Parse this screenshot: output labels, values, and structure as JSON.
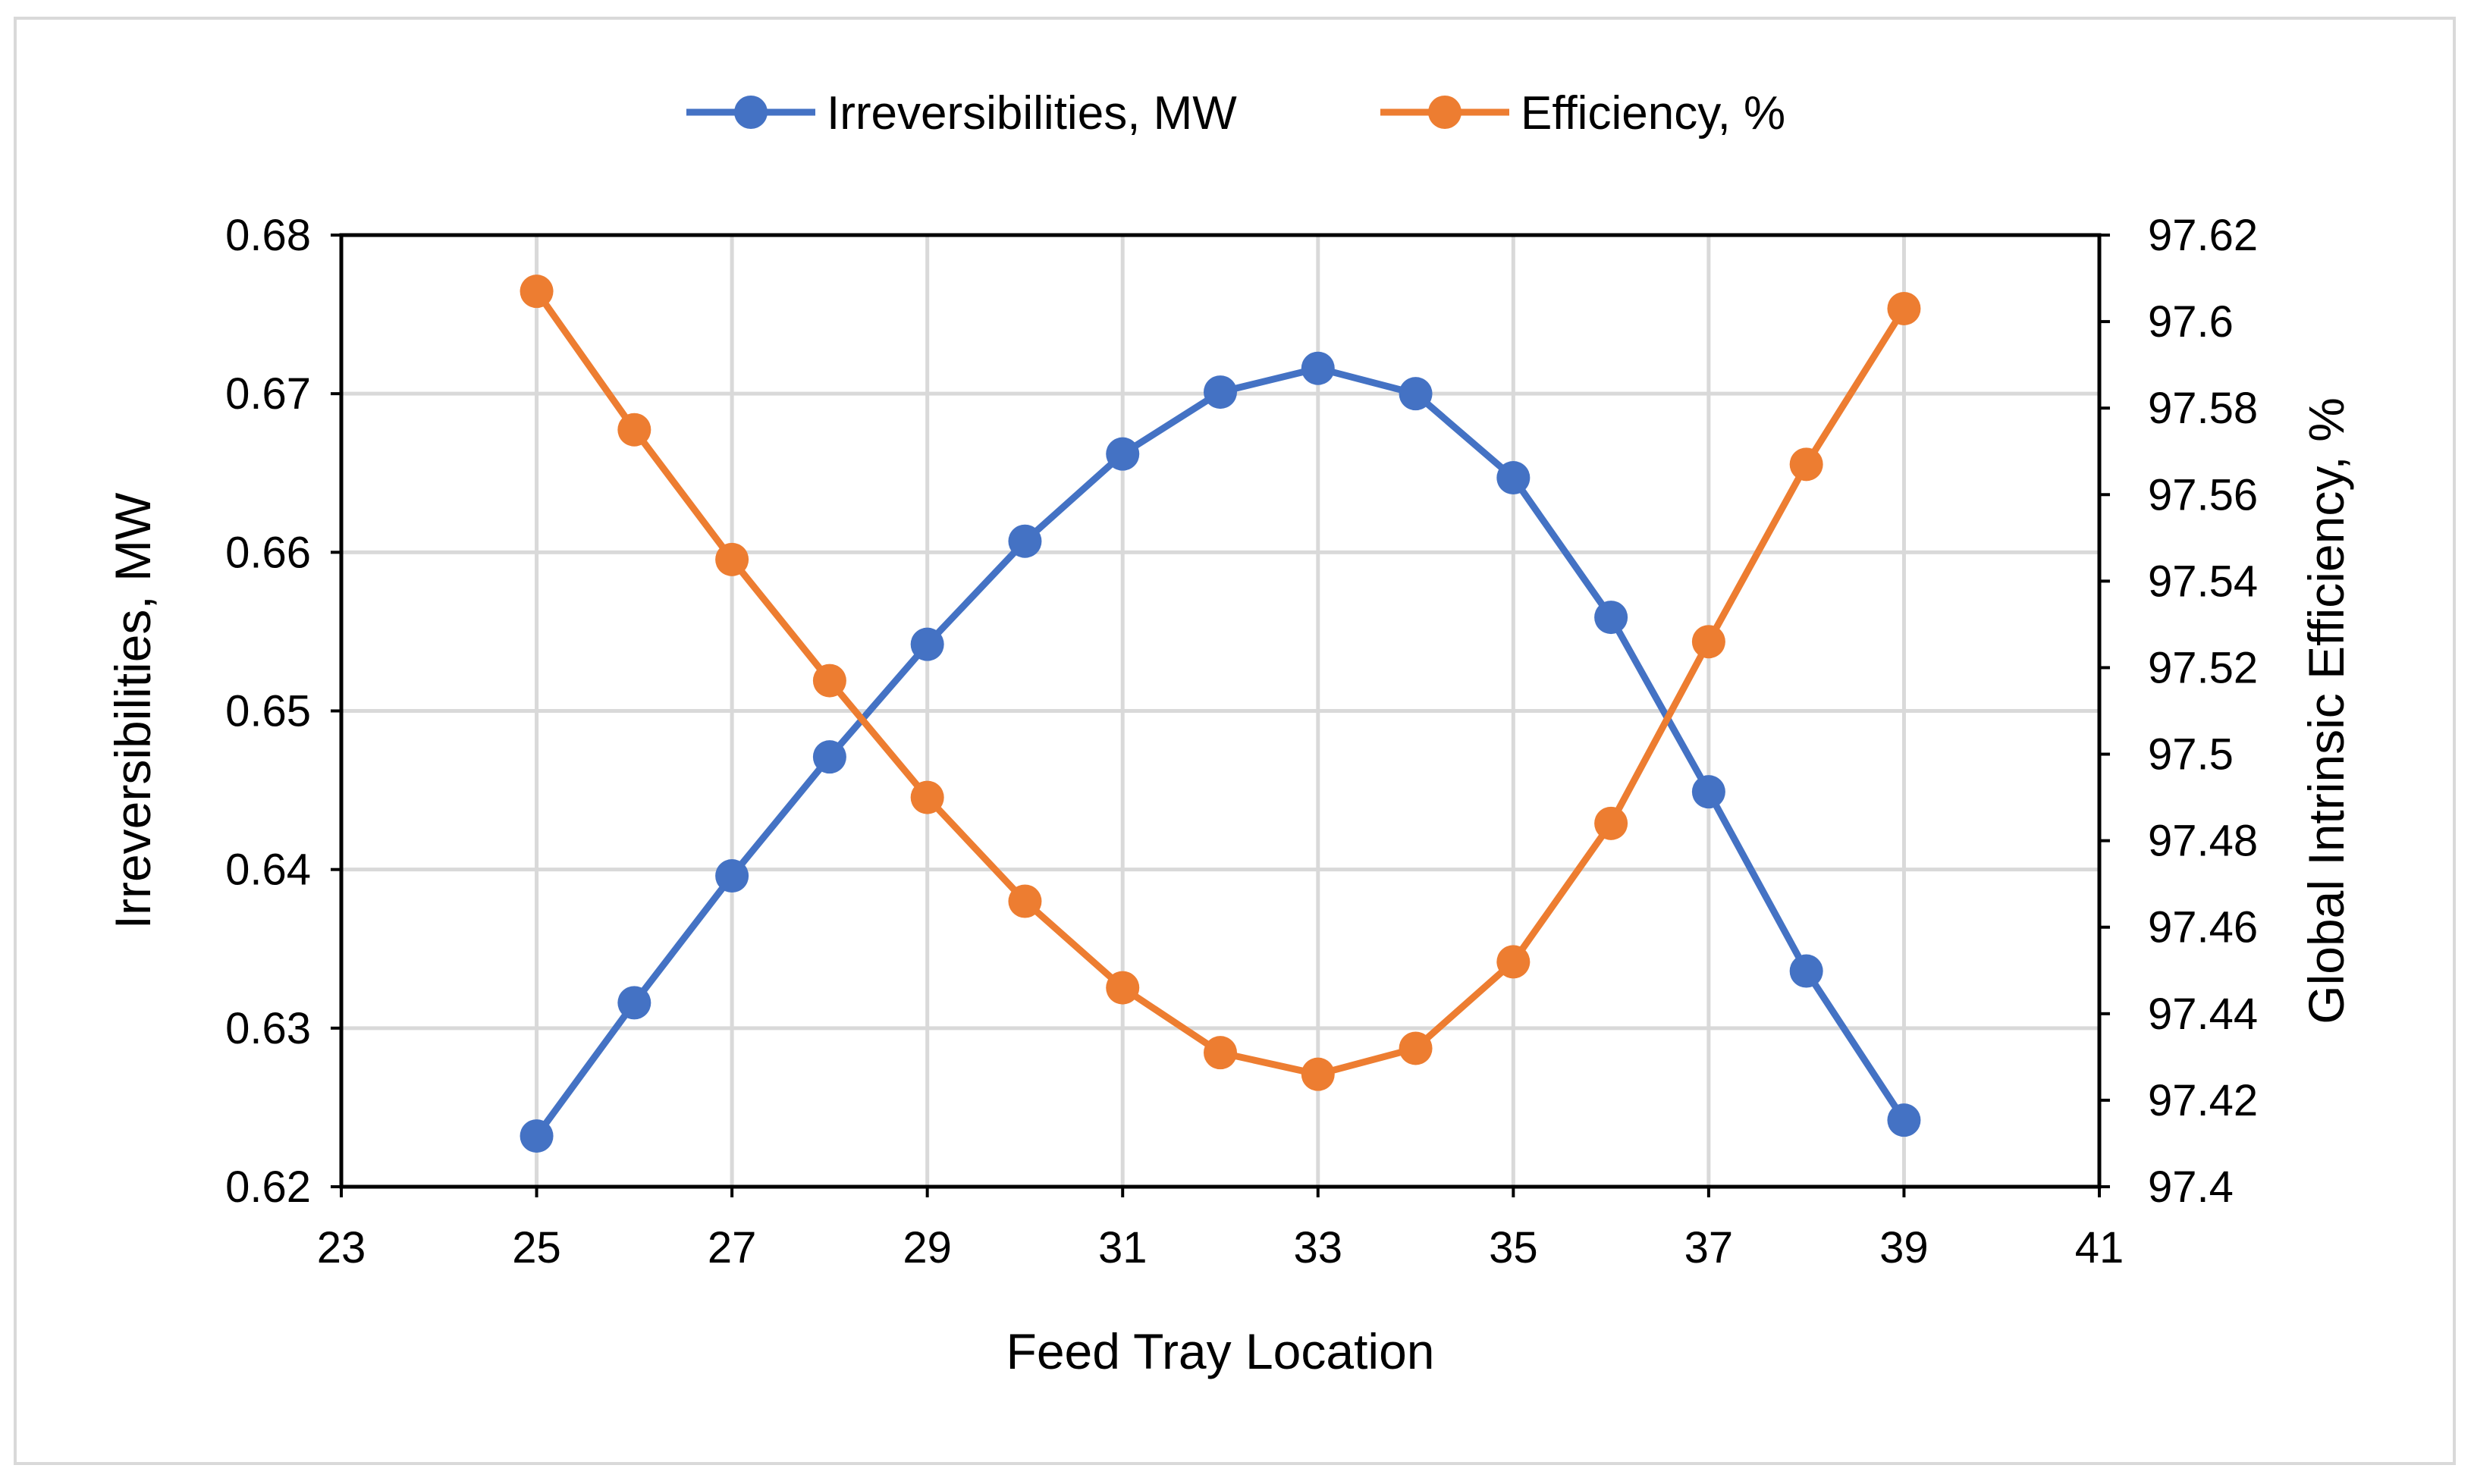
{
  "chart_data": {
    "type": "line",
    "title": "",
    "xlabel": "Feed Tray Location",
    "ylabel": "Irreversibilities, MW",
    "y2label": "Global Intrinsic Efficiency, %",
    "xlim": [
      23,
      41
    ],
    "ylim": [
      0.62,
      0.68
    ],
    "y2lim": [
      97.4,
      97.62
    ],
    "x_ticks": [
      23,
      25,
      27,
      29,
      31,
      33,
      35,
      37,
      39,
      41
    ],
    "y_ticks": [
      0.62,
      0.63,
      0.64,
      0.65,
      0.66,
      0.67,
      0.68
    ],
    "y2_ticks": [
      97.4,
      97.42,
      97.44,
      97.46,
      97.48,
      97.5,
      97.52,
      97.54,
      97.56,
      97.58,
      97.6,
      97.62
    ],
    "x_tick_labels": [
      "23",
      "25",
      "27",
      "29",
      "31",
      "33",
      "35",
      "37",
      "39",
      "41"
    ],
    "y_tick_labels": [
      "0.62",
      "0.63",
      "0.64",
      "0.65",
      "0.66",
      "0.67",
      "0.68"
    ],
    "y2_tick_labels": [
      "97.4",
      "97.42",
      "97.44",
      "97.46",
      "97.48",
      "97.5",
      "97.52",
      "97.54",
      "97.56",
      "97.58",
      "97.6",
      "97.62"
    ],
    "grid": true,
    "legend_position": "top-center",
    "x": [
      25,
      26,
      27,
      28,
      29,
      30,
      31,
      32,
      33,
      34,
      35,
      36,
      37,
      38,
      39
    ],
    "series": [
      {
        "name": "Irreversibilities, MW",
        "axis": "left",
        "color": "#4472c4",
        "values": [
          0.6232,
          0.6316,
          0.6396,
          0.6471,
          0.6542,
          0.6607,
          0.6662,
          0.6701,
          0.6716,
          0.67,
          0.6647,
          0.6559,
          0.6449,
          0.6336,
          0.6242
        ]
      },
      {
        "name": "Efficiency, %",
        "axis": "right",
        "color": "#ed7d31",
        "values": [
          97.607,
          97.575,
          97.545,
          97.517,
          97.49,
          97.466,
          97.446,
          97.431,
          97.426,
          97.432,
          97.452,
          97.484,
          97.526,
          97.567,
          97.603
        ]
      }
    ]
  }
}
